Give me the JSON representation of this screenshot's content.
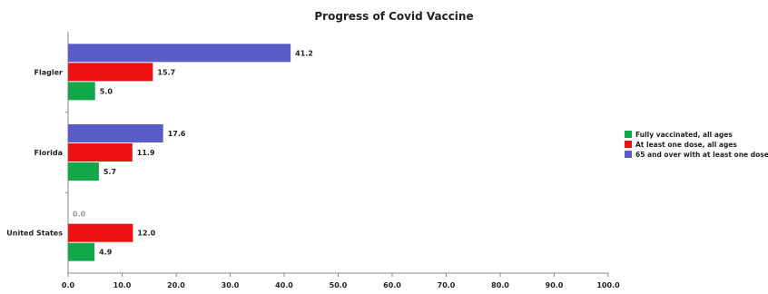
{
  "chart_data": {
    "type": "bar",
    "orientation": "horizontal",
    "title": "Progress of Covid Vaccine",
    "xlabel": "",
    "ylabel": "",
    "xlim": [
      0,
      100
    ],
    "x_ticks": [
      "0.0",
      "10.0",
      "20.0",
      "30.0",
      "40.0",
      "50.0",
      "60.0",
      "70.0",
      "80.0",
      "90.0",
      "100.0"
    ],
    "categories": [
      "Flagler",
      "Florida",
      "United States"
    ],
    "series": [
      {
        "name": "65 and over with at least one dose",
        "color": "#5b5bc8",
        "values": [
          41.2,
          17.6,
          0.0
        ],
        "labels": [
          "41.2",
          "17.6",
          "0.0"
        ]
      },
      {
        "name": "At least one dose, all ages",
        "color": "#ee1111",
        "values": [
          15.7,
          11.9,
          12.0
        ],
        "labels": [
          "15.7",
          "11.9",
          "12.0"
        ]
      },
      {
        "name": "Fully vaccinated, all ages",
        "color": "#11a84a",
        "values": [
          5.0,
          5.7,
          4.9
        ],
        "labels": [
          "5.0",
          "5.7",
          "4.9"
        ]
      }
    ],
    "legend": {
      "position": "right",
      "order": [
        "Fully vaccinated, all ages",
        "At least one dose, all ages",
        "65 and over with at least one dose"
      ]
    },
    "grid": false
  }
}
